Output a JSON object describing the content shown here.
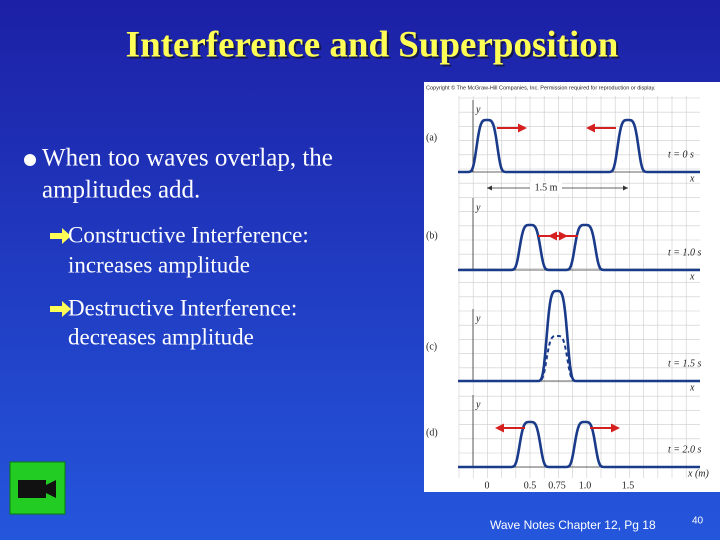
{
  "title": "Interference and Superposition",
  "bullet": {
    "lines": [
      "When too waves overlap, the",
      "amplitudes add."
    ]
  },
  "sub_bullets": [
    {
      "lines": [
        "Constructive Interference:",
        "increases amplitude"
      ]
    },
    {
      "lines": [
        "Destructive Interference:",
        "decreases amplitude"
      ]
    }
  ],
  "figure": {
    "copyright": "Copyright © The McGraw-Hill Companies, Inc. Permission required for reproduction or display.",
    "panels": [
      {
        "label": "(a)",
        "y_axis": "y",
        "time": "t = 0 s",
        "x_axis": "x"
      },
      {
        "label": "(b)",
        "y_axis": "y",
        "time": "t = 1.0 s",
        "x_axis": "x"
      },
      {
        "label": "(c)",
        "y_axis": "y",
        "time": "t = 1.5 s",
        "x_axis": "x"
      },
      {
        "label": "(d)",
        "y_axis": "y",
        "time": "t = 2.0 s",
        "x_axis": "x (m)"
      }
    ],
    "distance": "1.5 m",
    "x_ticks": [
      "0",
      "0.5",
      "0.75",
      "1.0",
      "1.5"
    ]
  },
  "footer": "Wave Notes Chapter 12, Pg 18",
  "page_number": "40"
}
